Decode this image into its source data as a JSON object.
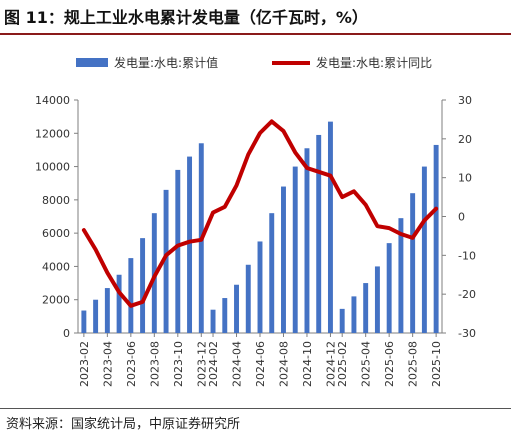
{
  "title": "图 11：规上工业水电累计发电量（亿千瓦时，%）",
  "source": "资料来源：国家统计局，中原证券研究所",
  "chart_data": {
    "type": "bar",
    "categories": [
      "2023-02",
      "2023-03",
      "2023-04",
      "2023-05",
      "2023-06",
      "2023-07",
      "2023-08",
      "2023-09",
      "2023-10",
      "2023-11",
      "2023-12",
      "2024-02",
      "2024-03",
      "2024-04",
      "2024-05",
      "2024-06",
      "2024-07",
      "2024-08",
      "2024-09",
      "2024-10",
      "2024-11",
      "2024-12",
      "2025-02",
      "2025-03",
      "2025-04",
      "2025-05",
      "2025-06",
      "2025-07",
      "2025-08",
      "2025-09",
      "2025-10"
    ],
    "x_tick_labels": [
      "2023-02",
      "2023-04",
      "2023-06",
      "2023-08",
      "2023-10",
      "2023-12",
      "2024-02",
      "2024-04",
      "2024-06",
      "2024-08",
      "2024-10",
      "2024-12",
      "2025-02",
      "2025-04",
      "2025-06",
      "2025-08",
      "2025-10"
    ],
    "series": [
      {
        "name": "发电量:水电:累计值",
        "type": "bar",
        "axis": "left",
        "color": "#4472c4",
        "values": [
          1350,
          2000,
          2700,
          3500,
          4500,
          5700,
          7200,
          8600,
          9800,
          10600,
          11400,
          1400,
          2100,
          2900,
          4100,
          5500,
          7200,
          8800,
          10000,
          11100,
          11900,
          12700,
          1450,
          2200,
          3000,
          4000,
          5400,
          6900,
          8400,
          10000,
          11300
        ]
      },
      {
        "name": "发电量:水电:累计同比",
        "type": "line",
        "axis": "right",
        "color": "#c00000",
        "values": [
          -3.5,
          -8.5,
          -14.5,
          -19.5,
          -23,
          -22,
          -15.5,
          -10,
          -7.5,
          -6.5,
          -6,
          1,
          2.5,
          8,
          16,
          21.5,
          24.5,
          22,
          16.5,
          12.5,
          11.5,
          10.5,
          5,
          6.5,
          3,
          -2.5,
          -3,
          -4.5,
          -5.5,
          -1,
          2
        ]
      }
    ],
    "y_left": {
      "min": 0,
      "max": 14000,
      "ticks": [
        0,
        2000,
        4000,
        6000,
        8000,
        10000,
        12000,
        14000
      ]
    },
    "y_right": {
      "min": -30,
      "max": 30,
      "ticks": [
        -30,
        -20,
        -10,
        0,
        10,
        20,
        30
      ]
    },
    "legend_position": "top",
    "grid": false
  }
}
